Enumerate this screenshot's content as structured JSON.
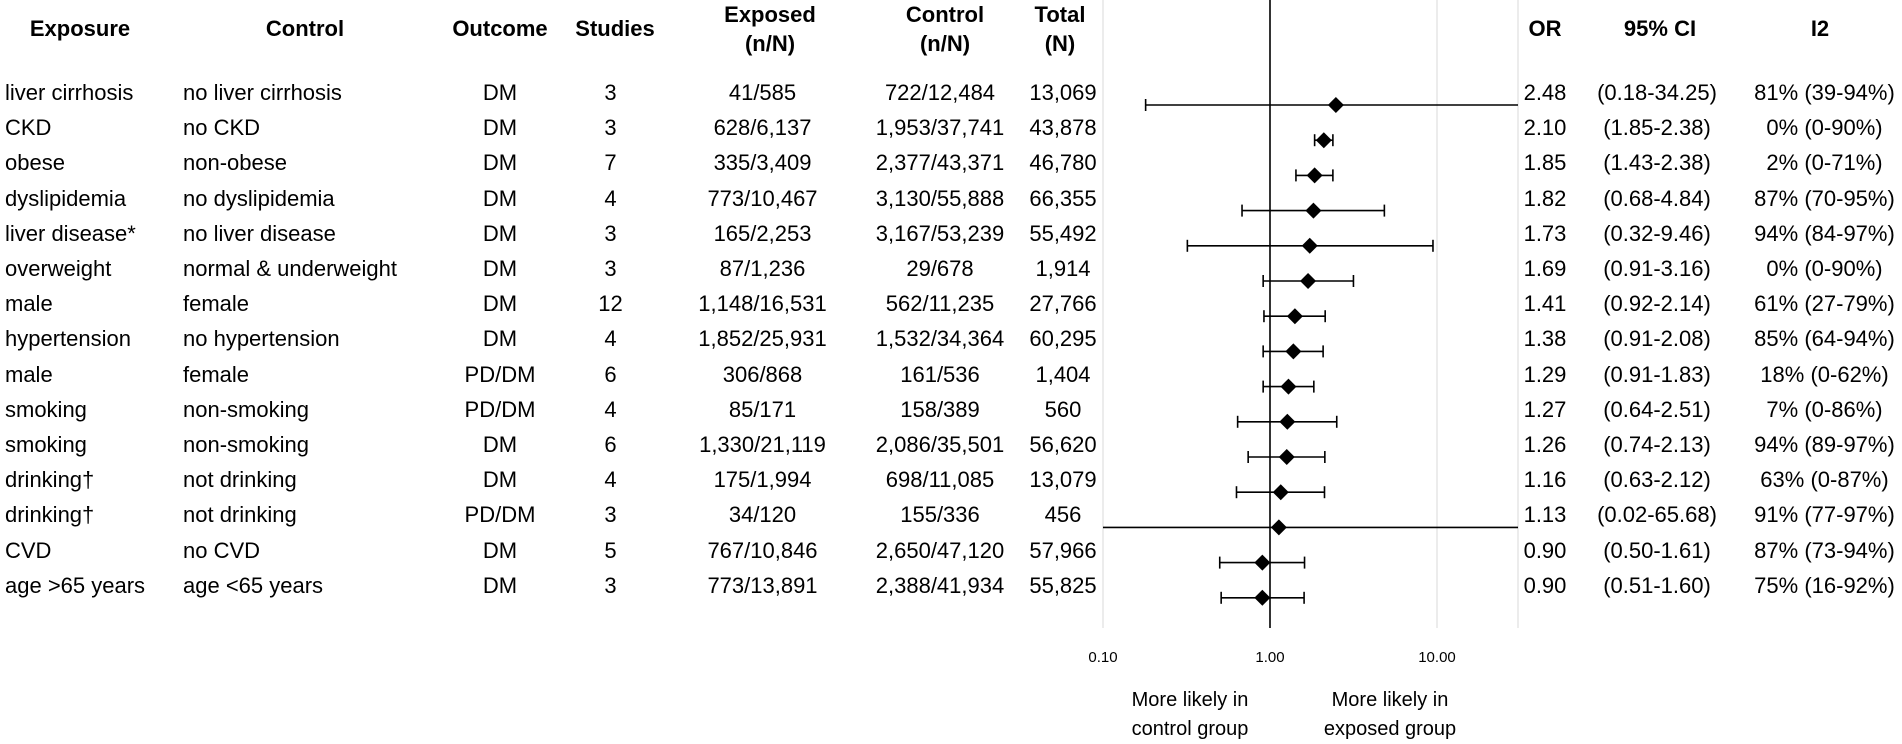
{
  "headers": {
    "exposure": "Exposure",
    "control": "Control",
    "outcome": "Outcome",
    "studies": "Studies",
    "exposed": "Exposed\n(n/N)",
    "control_n": "Control\n(n/N)",
    "total": "Total\n(N)",
    "or": "OR",
    "ci": "95% CI",
    "i2": "I2"
  },
  "chart_data": {
    "type": "forest",
    "xscale": "log",
    "xlim": [
      0.1,
      32
    ],
    "xticks": [
      0.1,
      1,
      10
    ],
    "xtick_labels": [
      "0.10",
      "1.00",
      "10.00"
    ],
    "reference_line": 1,
    "left_note": "More likely in\ncontrol group",
    "right_note": "More likely in\nexposed group",
    "rows": [
      {
        "exposure": "liver cirrhosis",
        "control": "no liver cirrhosis",
        "outcome": "DM",
        "studies": "3",
        "exposed": "41/585",
        "control_n": "722/12,484",
        "total": "13,069",
        "or": 2.48,
        "lo": 0.18,
        "hi": 34.25,
        "or_text": "2.48",
        "ci_text": "(0.18-34.25)",
        "i2_text": "81% (39-94%)"
      },
      {
        "exposure": "CKD",
        "control": "no CKD",
        "outcome": "DM",
        "studies": "3",
        "exposed": "628/6,137",
        "control_n": "1,953/37,741",
        "total": "43,878",
        "or": 2.1,
        "lo": 1.85,
        "hi": 2.38,
        "or_text": "2.10",
        "ci_text": "(1.85-2.38)",
        "i2_text": "0% (0-90%)"
      },
      {
        "exposure": "obese",
        "control": "non-obese",
        "outcome": "DM",
        "studies": "7",
        "exposed": "335/3,409",
        "control_n": "2,377/43,371",
        "total": "46,780",
        "or": 1.85,
        "lo": 1.43,
        "hi": 2.38,
        "or_text": "1.85",
        "ci_text": "(1.43-2.38)",
        "i2_text": "2% (0-71%)"
      },
      {
        "exposure": "dyslipidemia",
        "control": "no dyslipidemia",
        "outcome": "DM",
        "studies": "4",
        "exposed": "773/10,467",
        "control_n": "3,130/55,888",
        "total": "66,355",
        "or": 1.82,
        "lo": 0.68,
        "hi": 4.84,
        "or_text": "1.82",
        "ci_text": "(0.68-4.84)",
        "i2_text": "87% (70-95%)"
      },
      {
        "exposure": "liver disease*",
        "control": "no liver disease",
        "outcome": "DM",
        "studies": "3",
        "exposed": "165/2,253",
        "control_n": "3,167/53,239",
        "total": "55,492",
        "or": 1.73,
        "lo": 0.32,
        "hi": 9.46,
        "or_text": "1.73",
        "ci_text": "(0.32-9.46)",
        "i2_text": "94% (84-97%)"
      },
      {
        "exposure": "overweight",
        "control": "normal & underweight",
        "outcome": "DM",
        "studies": "3",
        "exposed": "87/1,236",
        "control_n": "29/678",
        "total": "1,914",
        "or": 1.69,
        "lo": 0.91,
        "hi": 3.16,
        "or_text": "1.69",
        "ci_text": "(0.91-3.16)",
        "i2_text": "0% (0-90%)"
      },
      {
        "exposure": "male",
        "control": "female",
        "outcome": "DM",
        "studies": "12",
        "exposed": "1,148/16,531",
        "control_n": "562/11,235",
        "total": "27,766",
        "or": 1.41,
        "lo": 0.92,
        "hi": 2.14,
        "or_text": "1.41",
        "ci_text": "(0.92-2.14)",
        "i2_text": "61% (27-79%)"
      },
      {
        "exposure": "hypertension",
        "control": "no hypertension",
        "outcome": "DM",
        "studies": "4",
        "exposed": "1,852/25,931",
        "control_n": "1,532/34,364",
        "total": "60,295",
        "or": 1.38,
        "lo": 0.91,
        "hi": 2.08,
        "or_text": "1.38",
        "ci_text": "(0.91-2.08)",
        "i2_text": "85% (64-94%)"
      },
      {
        "exposure": "male",
        "control": "female",
        "outcome": "PD/DM",
        "studies": "6",
        "exposed": "306/868",
        "control_n": "161/536",
        "total": "1,404",
        "or": 1.29,
        "lo": 0.91,
        "hi": 1.83,
        "or_text": "1.29",
        "ci_text": "(0.91-1.83)",
        "i2_text": "18% (0-62%)"
      },
      {
        "exposure": "smoking",
        "control": "non-smoking",
        "outcome": "PD/DM",
        "studies": "4",
        "exposed": "85/171",
        "control_n": "158/389",
        "total": "560",
        "or": 1.27,
        "lo": 0.64,
        "hi": 2.51,
        "or_text": "1.27",
        "ci_text": "(0.64-2.51)",
        "i2_text": "7% (0-86%)"
      },
      {
        "exposure": "smoking",
        "control": "non-smoking",
        "outcome": "DM",
        "studies": "6",
        "exposed": "1,330/21,119",
        "control_n": "2,086/35,501",
        "total": "56,620",
        "or": 1.26,
        "lo": 0.74,
        "hi": 2.13,
        "or_text": "1.26",
        "ci_text": "(0.74-2.13)",
        "i2_text": "94% (89-97%)"
      },
      {
        "exposure": "drinking†",
        "control": "not drinking",
        "outcome": "DM",
        "studies": "4",
        "exposed": "175/1,994",
        "control_n": "698/11,085",
        "total": "13,079",
        "or": 1.16,
        "lo": 0.63,
        "hi": 2.12,
        "or_text": "1.16",
        "ci_text": "(0.63-2.12)",
        "i2_text": "63% (0-87%)"
      },
      {
        "exposure": "drinking†",
        "control": "not drinking",
        "outcome": "PD/DM",
        "studies": "3",
        "exposed": "34/120",
        "control_n": "155/336",
        "total": "456",
        "or": 1.13,
        "lo": 0.02,
        "hi": 65.68,
        "or_text": "1.13",
        "ci_text": "(0.02-65.68)",
        "i2_text": "91% (77-97%)"
      },
      {
        "exposure": "CVD",
        "control": "no CVD",
        "outcome": "DM",
        "studies": "5",
        "exposed": "767/10,846",
        "control_n": "2,650/47,120",
        "total": "57,966",
        "or": 0.9,
        "lo": 0.5,
        "hi": 1.61,
        "or_text": "0.90",
        "ci_text": "(0.50-1.61)",
        "i2_text": "87% (73-94%)"
      },
      {
        "exposure": "age >65 years",
        "control": "age <65 years",
        "outcome": "DM",
        "studies": "3",
        "exposed": "773/13,891",
        "control_n": "2,388/41,934",
        "total": "55,825",
        "or": 0.9,
        "lo": 0.51,
        "hi": 1.6,
        "or_text": "0.90",
        "ci_text": "(0.51-1.60)",
        "i2_text": "75% (16-92%)"
      }
    ]
  }
}
